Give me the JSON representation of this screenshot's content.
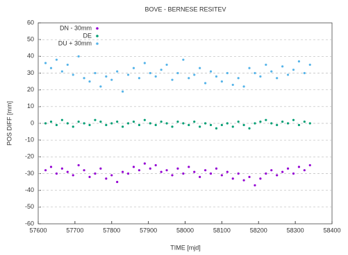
{
  "chart_data": {
    "type": "scatter",
    "title": "BOVE - BERNESE RESITEV",
    "x_label": "TIME [mjd]",
    "y_label": "POS DIFF [mm]",
    "x": [
      57620,
      57635,
      57650,
      57665,
      57680,
      57695,
      57710,
      57725,
      57740,
      57755,
      57770,
      57785,
      57800,
      57815,
      57830,
      57845,
      57860,
      57875,
      57890,
      57905,
      57920,
      57935,
      57950,
      57965,
      57980,
      57995,
      58010,
      58025,
      58040,
      58055,
      58070,
      58085,
      58100,
      58115,
      58130,
      58145,
      58160,
      58175,
      58190,
      58205,
      58220,
      58235,
      58250,
      58265,
      58280,
      58295,
      58310,
      58325,
      58340
    ],
    "series": [
      {
        "name": "DN - 30mm",
        "color": "#9400d3",
        "values": [
          -28,
          -26,
          -30,
          -27,
          -29,
          -31,
          -25,
          -28,
          -32,
          -30,
          -27,
          -33,
          -31,
          -35,
          -29,
          -30,
          -26,
          -28,
          -24,
          -27,
          -25,
          -29,
          -28,
          -31,
          -27,
          -30,
          -26,
          -29,
          -32,
          -28,
          -30,
          -27,
          -31,
          -29,
          -33,
          -30,
          -34,
          -32,
          -37,
          -33,
          -30,
          -28,
          -31,
          -29,
          -27,
          -30,
          -26,
          -28,
          -25
        ]
      },
      {
        "name": "DE",
        "color": "#009e73",
        "values": [
          0,
          1,
          -1,
          2,
          0,
          -2,
          1,
          0,
          -1,
          2,
          1,
          -1,
          0,
          1,
          -2,
          0,
          1,
          -1,
          2,
          0,
          -1,
          1,
          0,
          -2,
          1,
          0,
          -1,
          1,
          -2,
          0,
          -1,
          -3,
          -1,
          0,
          -2,
          1,
          -1,
          -3,
          0,
          1,
          2,
          0,
          -1,
          1,
          0,
          2,
          -1,
          1,
          0
        ]
      },
      {
        "name": "DU + 30mm",
        "color": "#56b4e9",
        "values": [
          36,
          33,
          38,
          31,
          35,
          29,
          40,
          27,
          25,
          30,
          22,
          28,
          26,
          31,
          19,
          29,
          33,
          27,
          36,
          30,
          28,
          32,
          35,
          26,
          30,
          38,
          27,
          29,
          33,
          24,
          31,
          28,
          25,
          30,
          23,
          27,
          22,
          33,
          30,
          28,
          35,
          31,
          27,
          34,
          29,
          32,
          37,
          30,
          35
        ]
      }
    ],
    "xlim": [
      57600,
      58400
    ],
    "xticks": [
      57600,
      57700,
      57800,
      57900,
      58000,
      58100,
      58200,
      58300,
      58400
    ],
    "ylim": [
      -60,
      60
    ],
    "yticks": [
      -60,
      -50,
      -40,
      -30,
      -20,
      -10,
      0,
      10,
      20,
      30,
      40,
      50,
      60
    ],
    "grid": true,
    "legend": "top-left"
  }
}
